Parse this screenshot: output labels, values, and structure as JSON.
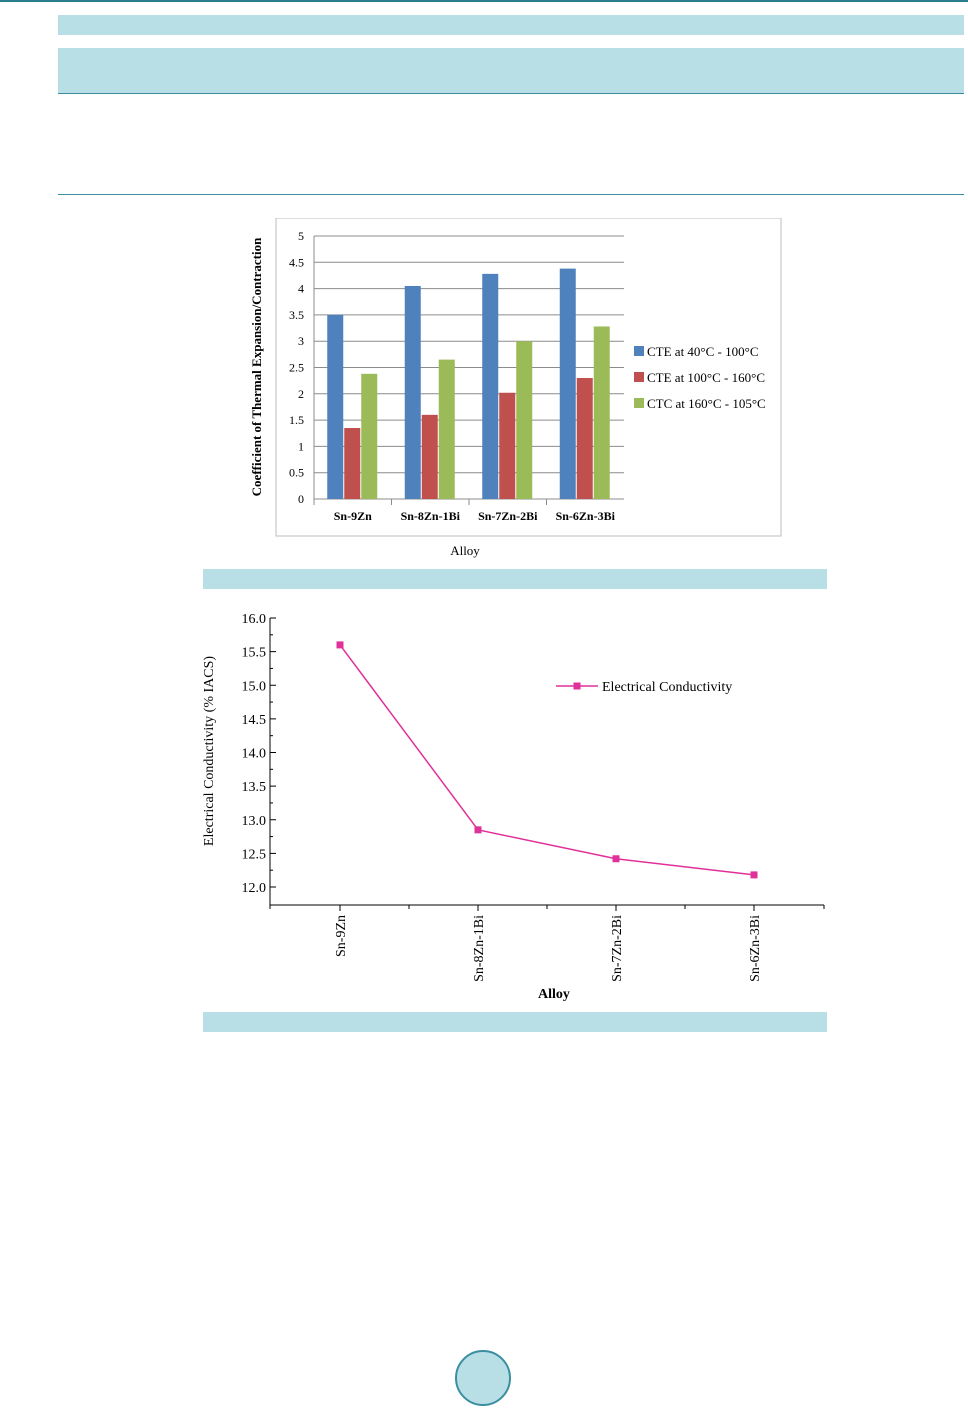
{
  "chart_data": [
    {
      "type": "bar",
      "categories": [
        "Sn-9Zn",
        "Sn-8Zn-1Bi",
        "Sn-7Zn-2Bi",
        "Sn-6Zn-3Bi"
      ],
      "series": [
        {
          "name": "CTE at 40°C - 100°C",
          "color": "#4f81bd",
          "values": [
            3.5,
            4.05,
            4.28,
            4.38
          ]
        },
        {
          "name": "CTE at 100°C - 160°C",
          "color": "#c0504d",
          "values": [
            1.35,
            1.6,
            2.02,
            2.3
          ]
        },
        {
          "name": "CTC at 160°C - 105°C",
          "color": "#9bbb59",
          "values": [
            2.38,
            2.65,
            3.0,
            3.28
          ]
        }
      ],
      "xlabel": "Alloy",
      "ylabel": "Coefficient of Thermal Expansion/Contraction",
      "ylim": [
        0,
        5
      ],
      "yticks": [
        "0",
        "0.5",
        "1",
        "1.5",
        "2",
        "2.5",
        "3",
        "3.5",
        "4",
        "4.5",
        "5"
      ],
      "grid": true,
      "legend": "right"
    },
    {
      "type": "line",
      "categories": [
        "Sn-9Zn",
        "Sn-8Zn-1Bi",
        "Sn-7Zn-2Bi",
        "Sn-6Zn-3Bi"
      ],
      "series": [
        {
          "name": "Electrical Conductivity",
          "color": "#e0309a",
          "values": [
            15.6,
            12.85,
            12.42,
            12.18
          ]
        }
      ],
      "xlabel": "Alloy",
      "ylabel": "Electrical Conductivity (% IACS)",
      "ylim": [
        12.0,
        16.0
      ],
      "yticks": [
        "12.0",
        "12.5",
        "13.0",
        "13.5",
        "14.0",
        "14.5",
        "15.0",
        "15.5",
        "16.0"
      ],
      "grid": false,
      "legend": "top-right"
    }
  ]
}
